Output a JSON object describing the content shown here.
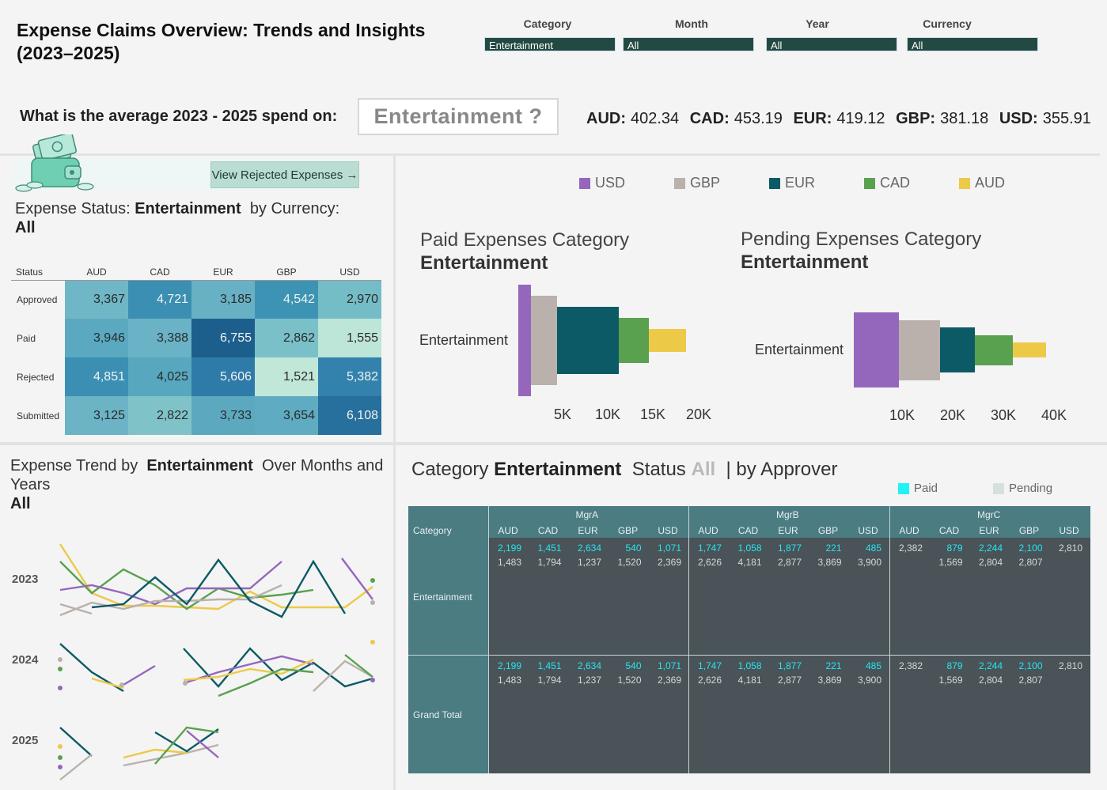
{
  "title": "Expense Claims Overview: Trends and Insights (2023–2025)",
  "filters": [
    {
      "label": "Category",
      "value": "Entertainment"
    },
    {
      "label": "Month",
      "value": "All"
    },
    {
      "label": "Year",
      "value": "All"
    },
    {
      "label": "Currency",
      "value": "All"
    }
  ],
  "question": {
    "text": "What is the average 2023 - 2025 spend on:",
    "answer": "Entertainment ?",
    "averages": [
      {
        "cur": "AUD:",
        "val": "402.34"
      },
      {
        "cur": "CAD:",
        "val": "453.19"
      },
      {
        "cur": "EUR:",
        "val": "419.12"
      },
      {
        "cur": "GBP:",
        "val": "381.18"
      },
      {
        "cur": "USD:",
        "val": "355.91"
      }
    ]
  },
  "reject_button": "View Rejected Expenses →",
  "status_panel": {
    "title_prefix": "Expense Status:",
    "category": "Entertainment",
    "title_mid": "by Currency:",
    "currency": "All",
    "headers": [
      "Status",
      "AUD",
      "CAD",
      "EUR",
      "GBP",
      "USD"
    ],
    "rows": [
      {
        "status": "Approved",
        "values": [
          "3,367",
          "4,721",
          "3,185",
          "4,542",
          "2,970"
        ],
        "colors": [
          "#6fb6c6",
          "#3a8fb2",
          "#68b1c4",
          "#3d93b4",
          "#74bdc7"
        ]
      },
      {
        "status": "Paid",
        "values": [
          "3,946",
          "3,388",
          "6,755",
          "2,862",
          "1,555"
        ],
        "colors": [
          "#5aa9c0",
          "#6ab2c5",
          "#1c5f8c",
          "#7ac0c8",
          "#bde5d8"
        ]
      },
      {
        "status": "Rejected",
        "values": [
          "4,851",
          "4,025",
          "5,606",
          "1,521",
          "5,382"
        ],
        "colors": [
          "#3b8fb3",
          "#57a7bf",
          "#2e7aa8",
          "#c1e7d9",
          "#3282ad"
        ]
      },
      {
        "status": "Submitted",
        "values": [
          "3,125",
          "2,822",
          "3,733",
          "3,654",
          "6,108"
        ],
        "colors": [
          "#6bb3c5",
          "#7fc3c9",
          "#5ca9bf",
          "#5fabc1",
          "#276f9c"
        ]
      }
    ]
  },
  "legend": [
    {
      "name": "USD",
      "color": "#9467bd"
    },
    {
      "name": "GBP",
      "color": "#bab0ac"
    },
    {
      "name": "EUR",
      "color": "#0c5a66"
    },
    {
      "name": "CAD",
      "color": "#59a14f"
    },
    {
      "name": "AUD",
      "color": "#edc948"
    }
  ],
  "paid_chart": {
    "title": "Paid Expenses Category",
    "category": "Entertainment",
    "label": "Entertainment",
    "ticks": [
      "5K",
      "10K",
      "15K",
      "20K"
    ]
  },
  "pending_chart": {
    "title": "Pending Expenses Category",
    "category": "Entertainment",
    "label": "Entertainment",
    "ticks": [
      "10K",
      "20K",
      "30K",
      "40K"
    ]
  },
  "trend_panel": {
    "title_prefix": "Expense Trend by",
    "category": "Entertainment",
    "title_mid": "Over  Months and Years",
    "filter": "All",
    "years": [
      "2023",
      "2024",
      "2025"
    ]
  },
  "approver_panel": {
    "title_prefix": "Category",
    "category": "Entertainment",
    "status_label": "Status",
    "status_value": "All",
    "title_suffix": "| by Approver",
    "legend_paid": "Paid",
    "legend_pending": "Pending",
    "category_header": "Category",
    "currencies": [
      "AUD",
      "CAD",
      "EUR",
      "GBP",
      "USD"
    ],
    "managers": [
      "MgrA",
      "MgrB",
      "MgrC"
    ],
    "rows": [
      {
        "label": "Entertainment",
        "paid": [
          [
            "2,199",
            "1,451",
            "2,634",
            "540",
            "1,071"
          ],
          [
            "1,747",
            "1,058",
            "1,877",
            "221",
            "485"
          ],
          [
            "",
            "879",
            "2,244",
            "2,100",
            ""
          ]
        ],
        "pending": [
          [
            "1,483",
            "1,794",
            "1,237",
            "1,520",
            "2,369"
          ],
          [
            "2,626",
            "4,181",
            "2,877",
            "3,869",
            "3,900"
          ],
          [
            "",
            "1,569",
            "2,804",
            "2,807",
            ""
          ]
        ],
        "mgrc_single": [
          "2,382",
          "2,810"
        ]
      },
      {
        "label": "Grand Total",
        "paid": [
          [
            "2,199",
            "1,451",
            "2,634",
            "540",
            "1,071"
          ],
          [
            "1,747",
            "1,058",
            "1,877",
            "221",
            "485"
          ],
          [
            "",
            "879",
            "2,244",
            "2,100",
            ""
          ]
        ],
        "pending": [
          [
            "1,483",
            "1,794",
            "1,237",
            "1,520",
            "2,369"
          ],
          [
            "2,626",
            "4,181",
            "2,877",
            "3,869",
            "3,900"
          ],
          [
            "",
            "1,569",
            "2,804",
            "2,807",
            ""
          ]
        ],
        "mgrc_single": [
          "2,382",
          "2,810"
        ]
      }
    ]
  }
}
